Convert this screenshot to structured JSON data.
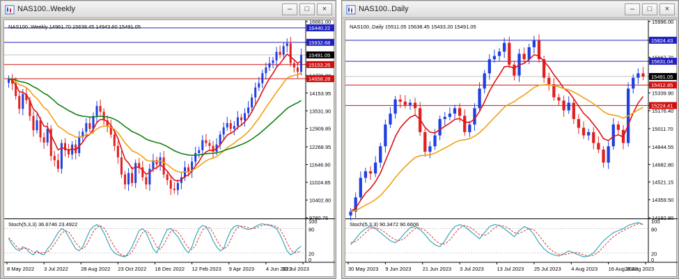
{
  "colors": {
    "bull": "#1f3fe0",
    "bear": "#e02020",
    "ma_fast": "#e01010",
    "ma_mid": "#f0a010",
    "ma_slow": "#108010",
    "hline_blue": "#2020c0",
    "hline_red": "#d01010",
    "stoch_main": "#36a8b8",
    "stoch_signal": "#e03030"
  },
  "windows": [
    {
      "id": "w",
      "title": "NAS100..Weekly",
      "buttons": [
        "–",
        "□",
        "×"
      ],
      "chart": {
        "header": "NAS100..Weekly   14961.70  15638.45  14943.60  15491.05",
        "ylim": [
          9780.75,
          16661.0
        ],
        "price_ticks": [
          "16661.00",
          "15932.68",
          "15491.05",
          "15153.26",
          "14776.00",
          "14658.28",
          "14153.95",
          "13531.90",
          "12909.85",
          "12268.95",
          "11646.90",
          "11024.85",
          "10402.80",
          "9780.75"
        ],
        "hlines": [
          {
            "value": 16440.22,
            "label": "16440.22",
            "color": "blue"
          },
          {
            "value": 15932.68,
            "label": "15932.68",
            "color": "blue"
          },
          {
            "value": 15153.26,
            "label": "15153.26",
            "color": "red"
          },
          {
            "value": 14658.28,
            "label": "14658.28",
            "color": "red"
          }
        ],
        "current": {
          "value": 15491.05,
          "label": "15491.05"
        },
        "stoch_label": "Stoch(5,3,3) 36.6746 23.4922",
        "stoch_levels": [
          "100",
          "80",
          "20",
          "0"
        ],
        "time_labels": [
          "8 May 2022",
          "3 Jul 2022",
          "28 Aug 2022",
          "23 Oct 2022",
          "18 Dec 2022",
          "12 Feb 2023",
          "9 Apr 2023",
          "4 Jun 2023",
          "30 Jul 2023"
        ]
      }
    },
    {
      "id": "d",
      "title": "NAS100..Daily",
      "buttons": [
        "–",
        "□",
        "×"
      ],
      "chart": {
        "header": "NAS100..Daily   15511.05  15638.45  15433.20  15491.05",
        "ylim": [
          14192.8,
          15996.0
        ],
        "price_ticks": [
          "15996.00",
          "15824.43",
          "15667.70",
          "15631.04",
          "15491.05",
          "15412.85",
          "15339.90",
          "15224.41",
          "15176.40",
          "15011.70",
          "14844.55",
          "14682.80",
          "14521.15",
          "14359.50",
          "14192.80"
        ],
        "hlines": [
          {
            "value": 15824.43,
            "label": "15824.43",
            "color": "blue"
          },
          {
            "value": 15631.04,
            "label": "15631.04",
            "color": "blue"
          },
          {
            "value": 15412.85,
            "label": "15412.85",
            "color": "red"
          },
          {
            "value": 15224.41,
            "label": "15224.41",
            "color": "red"
          }
        ],
        "current": {
          "value": 15491.05,
          "label": "15491.05"
        },
        "stoch_label": "Stoch(5,3,3) 90.3472 90.6606",
        "stoch_levels": [
          "100",
          "80",
          "20",
          "0"
        ],
        "time_labels": [
          "30 May 2023",
          "9 Jun 2023",
          "21 Jun 2023",
          "3 Jul 2023",
          "13 Jul 2023",
          "25 Jul 2023",
          "4 Aug 2023",
          "16 Aug 2023",
          "28 Aug 2023"
        ]
      }
    }
  ],
  "chart_data": [
    {
      "type": "candlestick",
      "title": "NAS100..Weekly",
      "ylim": [
        9780.75,
        16661.0
      ],
      "candles_close": [
        14650,
        14480,
        14050,
        13600,
        14120,
        13900,
        13350,
        12850,
        13200,
        12600,
        12420,
        12900,
        11950,
        11800,
        11500,
        12400,
        12150,
        12000,
        12350,
        12050,
        12600,
        12800,
        13100,
        12900,
        13350,
        13700,
        13500,
        13200,
        13000,
        12700,
        12300,
        11900,
        11300,
        10950,
        11350,
        11000,
        11700,
        11550,
        11200,
        10950,
        11500,
        11800,
        11650,
        11900,
        11300,
        11100,
        10800,
        10750,
        11000,
        11200,
        11550,
        11400,
        11750,
        12050,
        12150,
        12500,
        12400,
        12300,
        12100,
        12350,
        12700,
        12950,
        13100,
        12900,
        13000,
        13300,
        13200,
        13450,
        13650,
        14000,
        14350,
        14500,
        14850,
        15050,
        15200,
        15300,
        15600,
        15500,
        15800,
        15900,
        15200,
        15050,
        14900,
        15491
      ],
      "stoch_k": [
        55,
        40,
        30,
        25,
        35,
        30,
        20,
        15,
        25,
        18,
        15,
        30,
        40,
        55,
        70,
        80,
        75,
        60,
        45,
        30,
        25,
        35,
        55,
        75,
        85,
        90,
        85,
        70,
        50,
        30,
        20,
        15,
        12,
        10,
        20,
        35,
        55,
        75,
        80,
        70,
        50,
        30,
        20,
        40,
        60,
        78,
        80,
        70,
        60,
        45,
        30,
        20,
        35,
        60,
        80,
        88,
        85,
        70,
        50,
        35,
        25,
        30,
        55,
        75,
        85,
        88,
        85,
        80,
        78,
        80,
        85,
        90,
        92,
        90,
        88,
        85,
        80,
        65,
        45,
        25,
        15,
        20,
        30,
        36.67
      ],
      "stoch_d": [
        58,
        48,
        38,
        30,
        30,
        32,
        28,
        22,
        20,
        20,
        20,
        22,
        30,
        42,
        55,
        68,
        75,
        72,
        60,
        45,
        35,
        30,
        38,
        55,
        72,
        83,
        87,
        82,
        68,
        50,
        35,
        22,
        15,
        12,
        14,
        22,
        38,
        55,
        70,
        75,
        68,
        52,
        35,
        28,
        40,
        58,
        72,
        78,
        72,
        60,
        45,
        32,
        28,
        38,
        58,
        76,
        84,
        82,
        70,
        52,
        38,
        30,
        35,
        52,
        72,
        83,
        86,
        85,
        82,
        80,
        81,
        85,
        88,
        90,
        90,
        88,
        85,
        78,
        64,
        45,
        28,
        20,
        22,
        23.49
      ]
    },
    {
      "type": "candlestick",
      "title": "NAS100..Daily",
      "ylim": [
        14192.8,
        15996.0
      ],
      "candles_close": [
        14250,
        14380,
        14560,
        14620,
        14600,
        14700,
        14850,
        15050,
        15150,
        15280,
        15260,
        15230,
        15250,
        15200,
        14980,
        14800,
        14850,
        14950,
        15100,
        15120,
        15150,
        15200,
        15130,
        14980,
        15050,
        15200,
        15380,
        15520,
        15650,
        15680,
        15720,
        15800,
        15600,
        15500,
        15700,
        15650,
        15760,
        15820,
        15650,
        15480,
        15420,
        15300,
        15270,
        15180,
        15250,
        15100,
        15020,
        14950,
        14980,
        14880,
        14820,
        14700,
        14850,
        15050,
        15000,
        14880,
        15380,
        15480,
        15520,
        15491
      ],
      "stoch_k": [
        40,
        55,
        70,
        80,
        85,
        80,
        70,
        60,
        50,
        45,
        55,
        70,
        82,
        85,
        78,
        65,
        50,
        40,
        35,
        50,
        70,
        85,
        90,
        85,
        75,
        65,
        55,
        70,
        85,
        90,
        88,
        80,
        70,
        60,
        75,
        85,
        80,
        65,
        45,
        30,
        20,
        15,
        12,
        18,
        25,
        20,
        15,
        10,
        12,
        20,
        35,
        50,
        60,
        70,
        75,
        80,
        88,
        92,
        95,
        90.35
      ],
      "stoch_d": [
        45,
        48,
        58,
        70,
        80,
        82,
        78,
        70,
        60,
        52,
        50,
        57,
        70,
        80,
        82,
        76,
        65,
        52,
        42,
        42,
        52,
        68,
        82,
        88,
        84,
        75,
        65,
        63,
        70,
        82,
        88,
        86,
        80,
        70,
        68,
        74,
        80,
        77,
        63,
        47,
        32,
        22,
        16,
        15,
        18,
        21,
        20,
        15,
        12,
        14,
        22,
        35,
        48,
        60,
        68,
        75,
        81,
        87,
        92,
        90.66
      ]
    }
  ]
}
